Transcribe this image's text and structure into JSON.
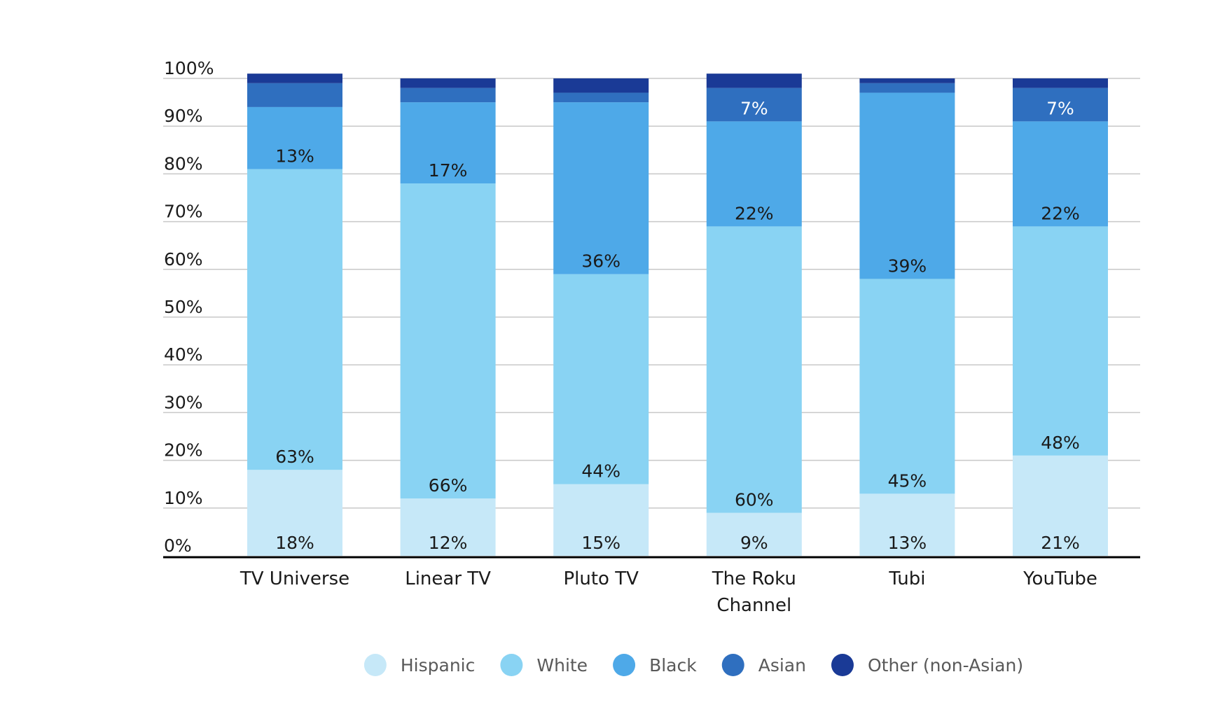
{
  "chart_data": {
    "type": "bar",
    "stacked": true,
    "categories": [
      "TV Universe",
      "Linear TV",
      "Pluto TV",
      "The Roku Channel",
      "Tubi",
      "YouTube"
    ],
    "category_lines": [
      [
        "TV Universe"
      ],
      [
        "Linear TV"
      ],
      [
        "Pluto TV"
      ],
      [
        "The Roku",
        "Channel"
      ],
      [
        "Tubi"
      ],
      [
        "YouTube"
      ]
    ],
    "series": [
      {
        "name": "Hispanic",
        "color": "#c6e8f8",
        "values": [
          18,
          12,
          15,
          9,
          13,
          21
        ],
        "labels": [
          "18%",
          "12%",
          "15%",
          "9%",
          "13%",
          "21%"
        ]
      },
      {
        "name": "White",
        "color": "#89d3f3",
        "values": [
          63,
          66,
          44,
          60,
          45,
          48
        ],
        "labels": [
          "63%",
          "66%",
          "44%",
          "60%",
          "45%",
          "48%"
        ]
      },
      {
        "name": "Black",
        "color": "#4ea9e8",
        "values": [
          13,
          17,
          36,
          22,
          39,
          22
        ],
        "labels": [
          "13%",
          "17%",
          "36%",
          "22%",
          "39%",
          "22%"
        ]
      },
      {
        "name": "Asian",
        "color": "#2f6fbf",
        "values": [
          5,
          3,
          2,
          7,
          2,
          7
        ],
        "labels": [
          "",
          "",
          "",
          "7%",
          "",
          "7%"
        ]
      },
      {
        "name": "Other (non-Asian)",
        "color": "#1a3a96",
        "values": [
          2,
          2,
          3,
          3,
          1,
          2
        ],
        "labels": [
          "",
          "",
          "",
          "",
          "",
          ""
        ]
      }
    ],
    "ylim": [
      0,
      100
    ],
    "yticks": [
      0,
      10,
      20,
      30,
      40,
      50,
      60,
      70,
      80,
      90,
      100
    ],
    "ytick_labels": [
      "0%",
      "10%",
      "20%",
      "30%",
      "40%",
      "50%",
      "60%",
      "70%",
      "80%",
      "90%",
      "100%"
    ],
    "grid": true,
    "legend_position": "bottom-center",
    "title": "",
    "xlabel": "",
    "ylabel": ""
  }
}
